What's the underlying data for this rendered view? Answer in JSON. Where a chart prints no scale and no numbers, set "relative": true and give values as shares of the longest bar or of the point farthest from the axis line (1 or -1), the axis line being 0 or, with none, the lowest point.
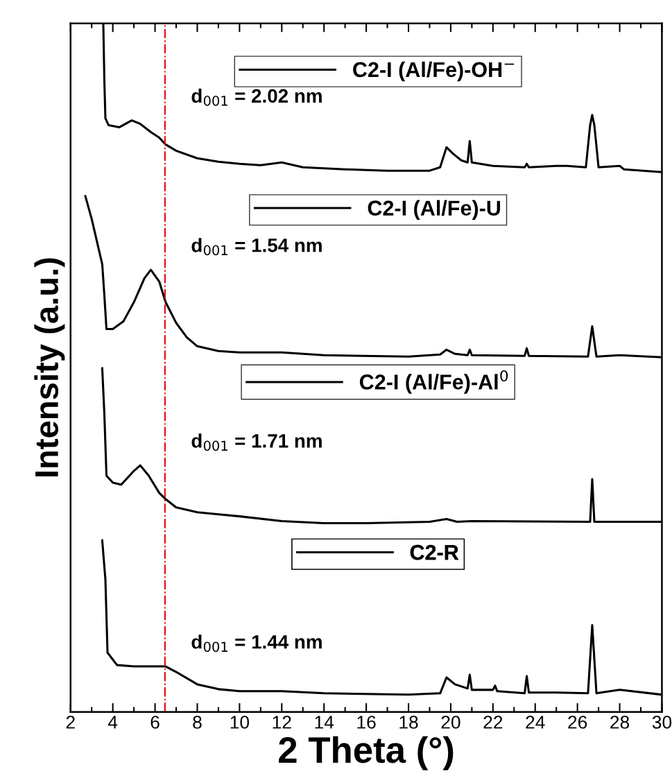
{
  "chart_data": {
    "type": "line",
    "relative": true,
    "xlabel": "2 Theta (°)",
    "ylabel": "Intensity (a.u.)",
    "xlim": [
      2,
      30
    ],
    "xticks": [
      2,
      4,
      6,
      8,
      10,
      12,
      14,
      16,
      18,
      20,
      22,
      24,
      26,
      28,
      30
    ],
    "legend": "top",
    "grid": false,
    "marker": "none",
    "line_style": "solid",
    "ref_lines": [
      {
        "axis": "x",
        "value": 6.47,
        "color": "#e8000b",
        "line_style": "dashdot"
      }
    ],
    "annotations": [
      "d$_{001}$ = 2.02 nm",
      "d$_{001}$ = 1.54 nm",
      "d$_{001}$ = 1.71 nm",
      "d$_{001}$ = 1.44 nm"
    ],
    "series": [
      {
        "name": "C2-I (Al/Fe)-OH$^{−}$",
        "color": "#000000",
        "x": [
          3.55,
          3.6,
          3.65,
          3.8,
          4.3,
          4.9,
          5.3,
          5.8,
          6.2,
          6.5,
          7,
          8,
          9,
          10,
          11,
          12,
          13,
          15,
          17,
          19,
          19.5,
          19.8,
          20.1,
          20.5,
          20.8,
          20.9,
          21.0,
          22,
          23.5,
          23.6,
          23.7,
          25,
          25.5,
          26.4,
          26.6,
          26.7,
          26.8,
          27,
          28,
          28.2,
          30
        ],
        "values": [
          1.0,
          0.917,
          0.862,
          0.852,
          0.849,
          0.859,
          0.854,
          0.842,
          0.834,
          0.824,
          0.815,
          0.804,
          0.799,
          0.796,
          0.794,
          0.798,
          0.791,
          0.788,
          0.786,
          0.786,
          0.791,
          0.82,
          0.811,
          0.801,
          0.798,
          0.829,
          0.798,
          0.793,
          0.791,
          0.796,
          0.791,
          0.793,
          0.793,
          0.791,
          0.852,
          0.867,
          0.852,
          0.791,
          0.793,
          0.788,
          0.784
        ]
      },
      {
        "name": "C2-I (Al/Fe)-U",
        "color": "#000000",
        "x": [
          2.7,
          3.0,
          3.5,
          3.6,
          3.7,
          4,
          4.5,
          5,
          5.5,
          5.8,
          6.2,
          6.5,
          7,
          7.5,
          8,
          9,
          10,
          12,
          14,
          18,
          19.5,
          19.8,
          20.2,
          20.8,
          20.9,
          21.0,
          23.5,
          23.6,
          23.7,
          26.5,
          26.7,
          26.9,
          28,
          30
        ],
        "values": [
          0.749,
          0.716,
          0.65,
          0.605,
          0.556,
          0.556,
          0.567,
          0.595,
          0.63,
          0.642,
          0.625,
          0.595,
          0.565,
          0.544,
          0.531,
          0.524,
          0.522,
          0.522,
          0.518,
          0.516,
          0.519,
          0.526,
          0.52,
          0.518,
          0.526,
          0.518,
          0.517,
          0.528,
          0.517,
          0.516,
          0.56,
          0.516,
          0.518,
          0.515
        ]
      },
      {
        "name": "C2-I (Al/Fe)-Al$^{0}$",
        "color": "#000000",
        "x": [
          3.5,
          3.6,
          3.7,
          4.0,
          4.4,
          5,
          5.3,
          5.7,
          6.2,
          6.5,
          7,
          8,
          9,
          10,
          12,
          14,
          16,
          19,
          19.8,
          20.3,
          21,
          26.6,
          26.7,
          26.8,
          30
        ],
        "values": [
          0.499,
          0.433,
          0.343,
          0.333,
          0.33,
          0.35,
          0.358,
          0.343,
          0.318,
          0.309,
          0.297,
          0.29,
          0.287,
          0.284,
          0.277,
          0.274,
          0.274,
          0.276,
          0.28,
          0.276,
          0.277,
          0.276,
          0.338,
          0.276,
          0.276
        ]
      },
      {
        "name": "C2-R",
        "color": "#000000",
        "x": [
          3.5,
          3.65,
          3.75,
          4.2,
          5,
          6,
          6.5,
          7,
          8,
          9,
          10,
          12,
          14,
          18,
          19.5,
          19.8,
          20.2,
          20.8,
          20.9,
          21.0,
          22,
          22.1,
          22.2,
          23.5,
          23.6,
          23.7,
          25,
          26.5,
          26.7,
          26.9,
          28,
          30
        ],
        "values": [
          0.249,
          0.192,
          0.086,
          0.068,
          0.066,
          0.066,
          0.066,
          0.058,
          0.04,
          0.033,
          0.03,
          0.03,
          0.027,
          0.025,
          0.027,
          0.05,
          0.04,
          0.034,
          0.054,
          0.032,
          0.032,
          0.038,
          0.03,
          0.027,
          0.052,
          0.028,
          0.028,
          0.027,
          0.126,
          0.027,
          0.032,
          0.025
        ]
      }
    ]
  }
}
